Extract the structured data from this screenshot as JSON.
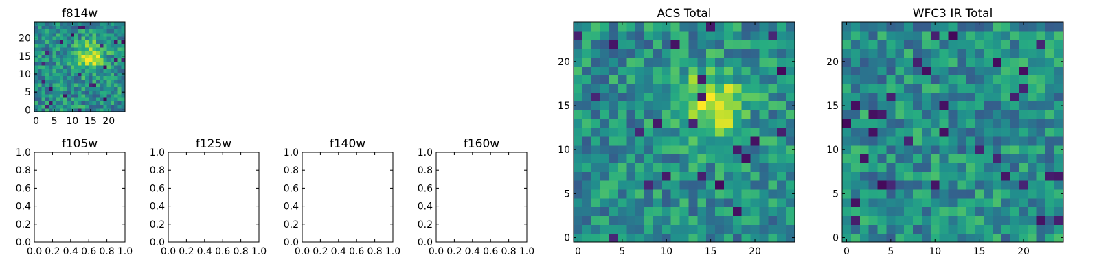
{
  "chart_data": [
    {
      "type": "heatmap",
      "title": "f814w",
      "colormap": "viridis",
      "xlim": [
        -0.5,
        24.5
      ],
      "ylim": [
        -0.5,
        24.5
      ],
      "xticks": [
        "0",
        "5",
        "10",
        "15",
        "20"
      ],
      "xtick_values": [
        0,
        5,
        10,
        15,
        20
      ],
      "yticks": [
        "0",
        "5",
        "10",
        "15",
        "20"
      ],
      "ytick_values": [
        0,
        5,
        10,
        15,
        20
      ],
      "grid_size": 25,
      "peak": {
        "x": 15,
        "y": 15
      }
    },
    {
      "type": "heatmap",
      "title": "f105w",
      "empty": true,
      "xlim": [
        0,
        1
      ],
      "ylim": [
        0,
        1
      ],
      "xticks": [
        "0.0",
        "0.2",
        "0.4",
        "0.6",
        "0.8",
        "1.0"
      ],
      "xtick_values": [
        0,
        0.2,
        0.4,
        0.6,
        0.8,
        1.0
      ],
      "yticks": [
        "0.0",
        "0.2",
        "0.4",
        "0.6",
        "0.8",
        "1.0"
      ],
      "ytick_values": [
        0,
        0.2,
        0.4,
        0.6,
        0.8,
        1.0
      ]
    },
    {
      "type": "heatmap",
      "title": "f125w",
      "empty": true,
      "xlim": [
        0,
        1
      ],
      "ylim": [
        0,
        1
      ],
      "xticks": [
        "0.0",
        "0.2",
        "0.4",
        "0.6",
        "0.8",
        "1.0"
      ],
      "xtick_values": [
        0,
        0.2,
        0.4,
        0.6,
        0.8,
        1.0
      ],
      "yticks": [
        "0.0",
        "0.2",
        "0.4",
        "0.6",
        "0.8",
        "1.0"
      ],
      "ytick_values": [
        0,
        0.2,
        0.4,
        0.6,
        0.8,
        1.0
      ]
    },
    {
      "type": "heatmap",
      "title": "f140w",
      "empty": true,
      "xlim": [
        0,
        1
      ],
      "ylim": [
        0,
        1
      ],
      "xticks": [
        "0.0",
        "0.2",
        "0.4",
        "0.6",
        "0.8",
        "1.0"
      ],
      "xtick_values": [
        0,
        0.2,
        0.4,
        0.6,
        0.8,
        1.0
      ],
      "yticks": [
        "0.0",
        "0.2",
        "0.4",
        "0.6",
        "0.8",
        "1.0"
      ],
      "ytick_values": [
        0,
        0.2,
        0.4,
        0.6,
        0.8,
        1.0
      ]
    },
    {
      "type": "heatmap",
      "title": "f160w",
      "empty": true,
      "xlim": [
        0,
        1
      ],
      "ylim": [
        0,
        1
      ],
      "xticks": [
        "0.0",
        "0.2",
        "0.4",
        "0.6",
        "0.8",
        "1.0"
      ],
      "xtick_values": [
        0,
        0.2,
        0.4,
        0.6,
        0.8,
        1.0
      ],
      "yticks": [
        "0.0",
        "0.2",
        "0.4",
        "0.6",
        "0.8",
        "1.0"
      ],
      "ytick_values": [
        0,
        0.2,
        0.4,
        0.6,
        0.8,
        1.0
      ]
    },
    {
      "type": "heatmap",
      "title": "ACS Total",
      "colormap": "viridis",
      "xlim": [
        -0.5,
        24.5
      ],
      "ylim": [
        -0.5,
        24.5
      ],
      "xticks": [
        "0",
        "5",
        "10",
        "15",
        "20"
      ],
      "xtick_values": [
        0,
        5,
        10,
        15,
        20
      ],
      "yticks": [
        "0",
        "5",
        "10",
        "15",
        "20"
      ],
      "ytick_values": [
        0,
        5,
        10,
        15,
        20
      ],
      "grid_size": 25,
      "peak": {
        "x": 15,
        "y": 15
      }
    },
    {
      "type": "heatmap",
      "title": "WFC3 IR Total",
      "colormap": "viridis",
      "xlim": [
        -0.5,
        24.5
      ],
      "ylim": [
        -0.5,
        24.5
      ],
      "xticks": [
        "0",
        "5",
        "10",
        "15",
        "20"
      ],
      "xtick_values": [
        0,
        5,
        10,
        15,
        20
      ],
      "yticks": [
        "0",
        "5",
        "10",
        "15",
        "20"
      ],
      "ytick_values": [
        0,
        5,
        10,
        15,
        20
      ],
      "grid_size": 25
    }
  ]
}
